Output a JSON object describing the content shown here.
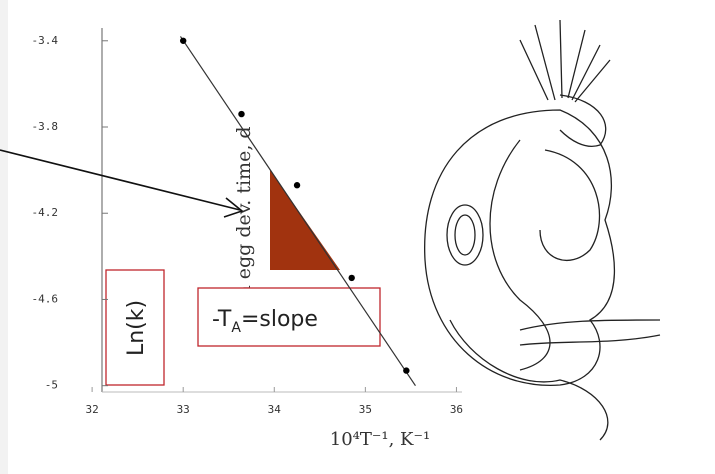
{
  "chart_data": {
    "type": "scatter",
    "x": [
      33.0,
      33.64,
      34.25,
      34.85,
      35.45
    ],
    "values": [
      -3.4,
      -3.74,
      -4.07,
      -4.5,
      -4.93
    ],
    "fit": {
      "x": [
        32.97,
        35.55
      ],
      "y": [
        -3.38,
        -5.0
      ]
    },
    "color": "#000000",
    "xlim": [
      31.9,
      36.05
    ],
    "xticks": [
      32,
      33,
      34,
      35,
      36
    ],
    "ylim": [
      -5.02,
      -3.35
    ],
    "yticks": [
      -3.4,
      -3.8,
      -4.2,
      -4.6,
      -5
    ],
    "xlabel": "10⁴T⁻¹, K⁻¹",
    "ylabel": "ln egg dev. time, d",
    "annotations": {
      "lnk": "Ln(k)",
      "slope_prefix": "-T",
      "slope_sub": "A",
      "slope_suffix": "=slope"
    }
  }
}
